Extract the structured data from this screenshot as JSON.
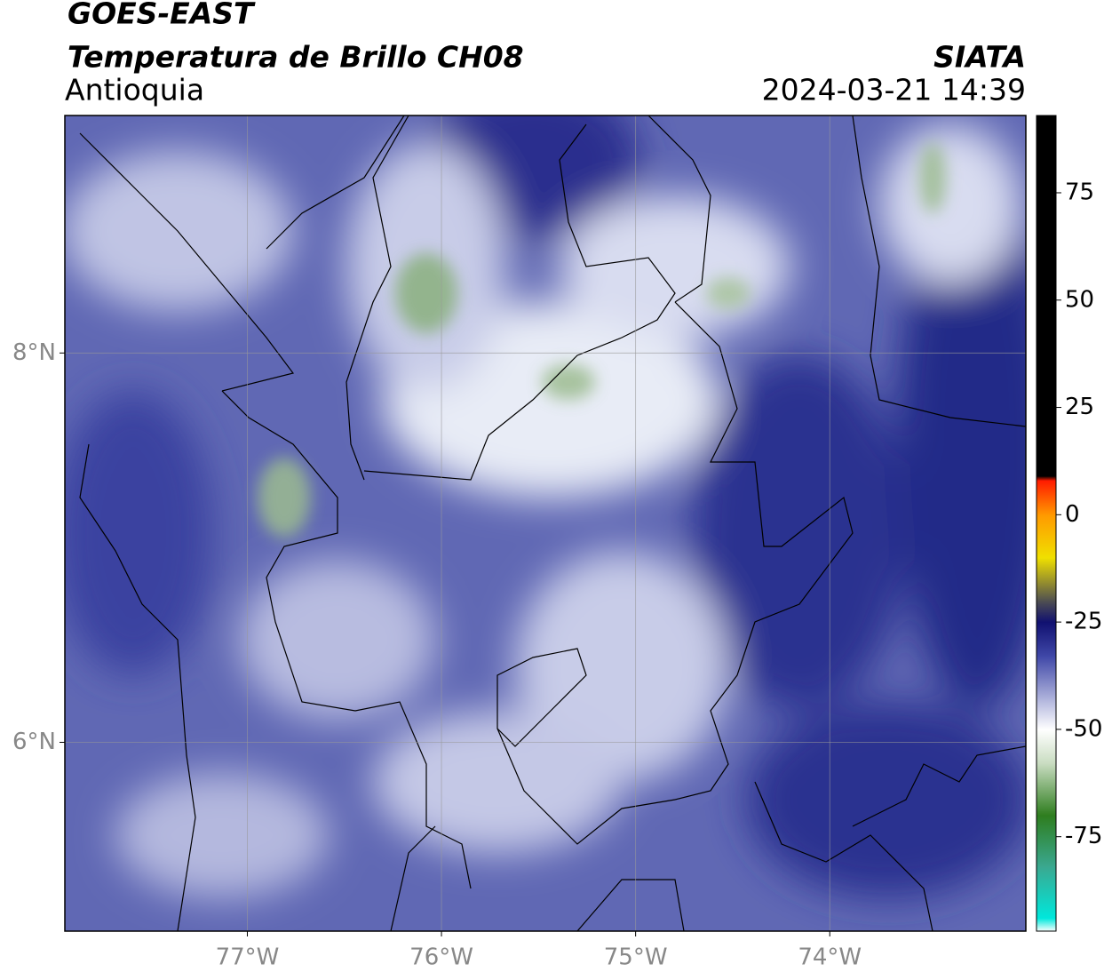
{
  "header": {
    "title": "GOES-EAST",
    "subtitle": "Temperatura de Brillo CH08",
    "source": "SIATA",
    "region": "Antioquia",
    "timestamp": "2024-03-21 14:39"
  },
  "map": {
    "xlim": [
      -77.94,
      -72.99
    ],
    "ylim": [
      5.03,
      9.22
    ],
    "xticks": [
      {
        "value": -77,
        "label": "77°W"
      },
      {
        "value": -76,
        "label": "76°W"
      },
      {
        "value": -75,
        "label": "75°W"
      },
      {
        "value": -74,
        "label": "74°W"
      }
    ],
    "yticks": [
      {
        "value": 6,
        "label": "6°N"
      },
      {
        "value": 8,
        "label": "8°N"
      }
    ],
    "grid": true,
    "colorbar": {
      "lim": [
        -97,
        93
      ],
      "ticks": [
        -75,
        -50,
        -25,
        0,
        25,
        50,
        75
      ],
      "stops": [
        {
          "value": -97,
          "color": "#ffffff"
        },
        {
          "value": -94,
          "color": "#00e8dc"
        },
        {
          "value": -82,
          "color": "#3aa890"
        },
        {
          "value": -70,
          "color": "#2e7d1e"
        },
        {
          "value": -58,
          "color": "#c8dcc0"
        },
        {
          "value": -50,
          "color": "#ffffff"
        },
        {
          "value": -43,
          "color": "#b0b4dc"
        },
        {
          "value": -33,
          "color": "#4048a8"
        },
        {
          "value": -25,
          "color": "#101070"
        },
        {
          "value": -20,
          "color": "#505050"
        },
        {
          "value": -10,
          "color": "#f0e000"
        },
        {
          "value": 0,
          "color": "#ff9900"
        },
        {
          "value": 8,
          "color": "#ff1a00"
        },
        {
          "value": 9,
          "color": "#000000"
        },
        {
          "value": 93,
          "color": "#000000"
        }
      ]
    }
  }
}
